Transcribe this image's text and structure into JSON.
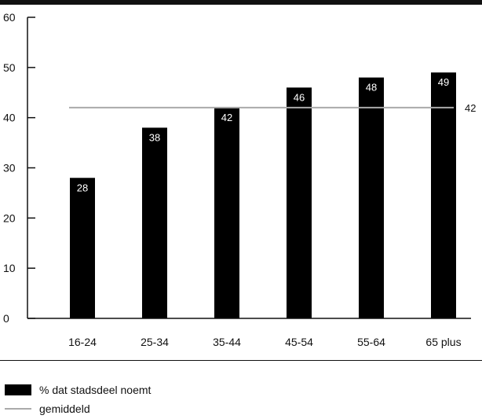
{
  "chart_data": {
    "type": "bar",
    "categories": [
      "16-24",
      "25-34",
      "35-44",
      "45-54",
      "55-64",
      "65 plus"
    ],
    "series": [
      {
        "name": "% dat stadsdeel noemt",
        "values": [
          28,
          38,
          42,
          46,
          48,
          49
        ]
      }
    ],
    "reference_line": {
      "name": "gemiddeld",
      "value": 42,
      "label": "42"
    },
    "ylim": [
      0,
      60
    ],
    "yticks": [
      0,
      10,
      20,
      30,
      40,
      50,
      60
    ],
    "grid": false,
    "legend_position": "bottom-left",
    "colors": {
      "bar": "#000000",
      "reference_line": "#aaaaaa",
      "bar_label": "#ffffff"
    }
  },
  "legend": {
    "items": [
      {
        "label": "% dat stadsdeel noemt",
        "type": "bar"
      },
      {
        "label": "gemiddeld",
        "type": "line"
      }
    ]
  }
}
